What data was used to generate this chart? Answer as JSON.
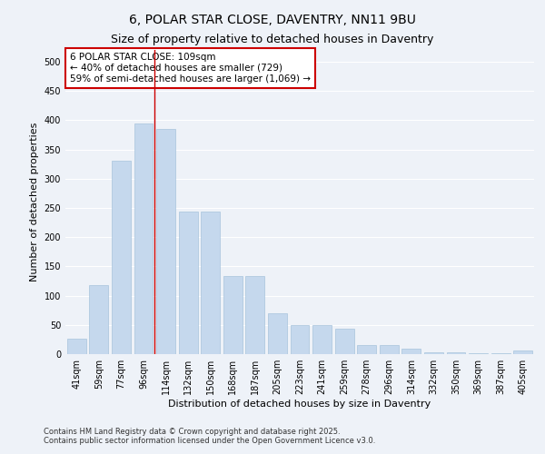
{
  "title": "6, POLAR STAR CLOSE, DAVENTRY, NN11 9BU",
  "subtitle": "Size of property relative to detached houses in Daventry",
  "xlabel": "Distribution of detached houses by size in Daventry",
  "ylabel": "Number of detached properties",
  "categories": [
    "41sqm",
    "59sqm",
    "77sqm",
    "96sqm",
    "114sqm",
    "132sqm",
    "150sqm",
    "168sqm",
    "187sqm",
    "205sqm",
    "223sqm",
    "241sqm",
    "259sqm",
    "278sqm",
    "296sqm",
    "314sqm",
    "332sqm",
    "350sqm",
    "369sqm",
    "387sqm",
    "405sqm"
  ],
  "values": [
    27,
    118,
    330,
    395,
    385,
    243,
    243,
    133,
    133,
    70,
    50,
    50,
    44,
    15,
    15,
    10,
    3,
    3,
    1,
    1,
    6
  ],
  "bar_color": "#c5d8ed",
  "bar_edge_color": "#a8c4dc",
  "vline_color": "#cc0000",
  "annotation_text": "6 POLAR STAR CLOSE: 109sqm\n← 40% of detached houses are smaller (729)\n59% of semi-detached houses are larger (1,069) →",
  "annotation_box_color": "#ffffff",
  "annotation_edge_color": "#cc0000",
  "footer": "Contains HM Land Registry data © Crown copyright and database right 2025.\nContains public sector information licensed under the Open Government Licence v3.0.",
  "ylim": [
    0,
    520
  ],
  "yticks": [
    0,
    50,
    100,
    150,
    200,
    250,
    300,
    350,
    400,
    450,
    500
  ],
  "background_color": "#eef2f8",
  "grid_color": "#ffffff",
  "title_fontsize": 10,
  "subtitle_fontsize": 9,
  "axis_label_fontsize": 8,
  "tick_fontsize": 7,
  "annotation_fontsize": 7.5,
  "footer_fontsize": 6
}
